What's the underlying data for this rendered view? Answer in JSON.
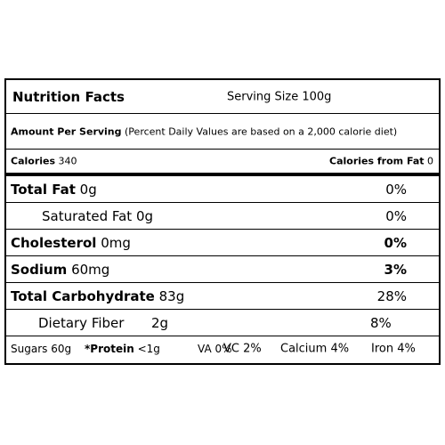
{
  "header": {
    "title": "Nutrition Facts",
    "serving": "Serving Size 100g"
  },
  "amount": {
    "label": "Amount Per Serving",
    "note": "(Percent Daily Values are based on a 2,000 calorie diet)"
  },
  "calories": {
    "label": "Calories",
    "value": "340"
  },
  "calories_fat": {
    "label": "Calories from Fat",
    "value": "0"
  },
  "rows": [
    {
      "label": "Total Fat",
      "amount": "0g",
      "percent": "0%"
    },
    {
      "label": "Saturated Fat",
      "amount": "0g",
      "percent": "0%"
    },
    {
      "label": "Cholesterol",
      "amount": "0mg",
      "percent": "0%"
    },
    {
      "label": "Sodium",
      "amount": "60mg",
      "percent": "3%"
    },
    {
      "label": "Total Carbohydrate",
      "amount": "83g",
      "percent": "28%"
    },
    {
      "label": "Dietary Fiber",
      "amount": "2g",
      "percent": "8%"
    }
  ],
  "footer": [
    {
      "label": "Sugars",
      "value": "60g"
    },
    {
      "label": "*Protein",
      "value": "<1g"
    },
    {
      "label": "VA",
      "value": "0%"
    },
    {
      "label": "VC",
      "value": "2%"
    },
    {
      "label": "Calcium",
      "value": "4%"
    },
    {
      "label": "Iron",
      "value": "4%"
    }
  ]
}
